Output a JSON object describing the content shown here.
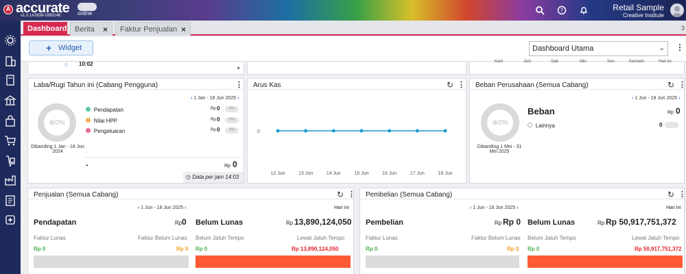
{
  "app": {
    "brand": "accurate",
    "brand_sub": "online",
    "version": "v1.0.1#2838-1893146",
    "user_name": "Retail Sample",
    "user_org": "Creative Institute"
  },
  "tabs": [
    {
      "label": "Dashboard"
    },
    {
      "label": "Berita"
    },
    {
      "label": "Faktur Penjualan"
    }
  ],
  "tab_count": "3",
  "toolbar": {
    "widget_plus": "+",
    "widget_label": "Widget",
    "dashboard_select": "Dashboard Utama"
  },
  "top_strip": {
    "time": "10:02",
    "days": [
      "Kam",
      "Jum",
      "Sab",
      "Min",
      "Sen",
      "Kemarin",
      "Hari ini"
    ]
  },
  "laba_rugi": {
    "title": "Laba/Rugi Tahun ini (Cabang Pengguna)",
    "range": "1 Jan - 18 Jun 2025",
    "percent": "0%",
    "compare": "Dibanding 1 Jan - 18 Jun 2024",
    "items": [
      {
        "label": "Pendapatan",
        "currency": "Rp",
        "value": "0",
        "pct": "0%",
        "color": "#5ac8a0"
      },
      {
        "label": "Nilai HPP",
        "currency": "Rp",
        "value": "0",
        "pct": "0%",
        "color": "#f0b24a"
      },
      {
        "label": "Pengeluaran",
        "currency": "Rp",
        "value": "0",
        "pct": "0%",
        "color": "#ec6a8e"
      }
    ],
    "total_dash": "-",
    "total_currency": "Rp",
    "total_value": "0",
    "footer": "Data per jam 14:03"
  },
  "arus_kas": {
    "title": "Arus Kas",
    "chart_data": {
      "type": "line",
      "categories": [
        "12 Jun",
        "13 Jun",
        "14 Jun",
        "15 Jun",
        "16 Jun",
        "17 Jun",
        "18 Jun"
      ],
      "values": [
        0,
        0,
        0,
        0,
        0,
        0,
        0
      ],
      "ytick": "0",
      "color": "#1f9bd0"
    }
  },
  "beban": {
    "title": "Beban Perusahaan (Semua Cabang)",
    "range": "1 Jun - 18 Jun 2025",
    "percent": "0%",
    "compare": "Dibanding 1 Mei - 31 Mei 2025",
    "heading": "Beban",
    "currency": "Rp",
    "value": "0",
    "item_label": "Lainnya",
    "item_value": "0"
  },
  "penjualan": {
    "title": "Penjualan (Semua Cabang)",
    "range": "1 Jun - 18 Jun 2025",
    "hari_ini": "Hari ini",
    "left_label": "Pendapatan",
    "left_currency": "Rp",
    "left_value": "0",
    "right_label": "Belum Lunas",
    "right_currency": "Rp",
    "right_value": "13,890,124,050",
    "sub1_label": "Faktur Lunas",
    "sub1_value": "Rp 0",
    "sub2_label": "Faktur Belum Lunas",
    "sub2_value": "Rp 0",
    "sub3_label": "Belum Jatuh Tempo",
    "sub3_value": "Rp 0",
    "sub4_label": "Lewat Jatuh Tempo",
    "sub4_value": "Rp 13,890,124,050"
  },
  "pembelian": {
    "title": "Pembelian (Semua Cabang)",
    "range": "1 Jun - 18 Jun 2025",
    "hari_ini": "Hari ini",
    "left_label": "Pembelian",
    "left_currency": "Rp",
    "left_value": "Rp 0",
    "right_label": "Belum Lunas",
    "right_currency": "Rp",
    "right_value": "Rp 50,917,751,372",
    "sub1_label": "Faktur Lunas",
    "sub1_value": "Rp 0",
    "sub2_label": "Faktur Belum Lunas",
    "sub2_value": "Rp 0",
    "sub3_label": "Belum Jatuh Tempo",
    "sub3_value": "Rp 0",
    "sub4_label": "Lewat Jatuh Tempo",
    "sub4_value": "Rp 50,917,751,372"
  },
  "colors": {
    "accent": "#d5294f",
    "sidebar": "#1f2a5c",
    "link_blue": "#2a78d0",
    "green_value": "#4caf50",
    "orange_value": "#f0a020",
    "red_value": "#e0242a",
    "bar_red": "#ff5a36"
  }
}
